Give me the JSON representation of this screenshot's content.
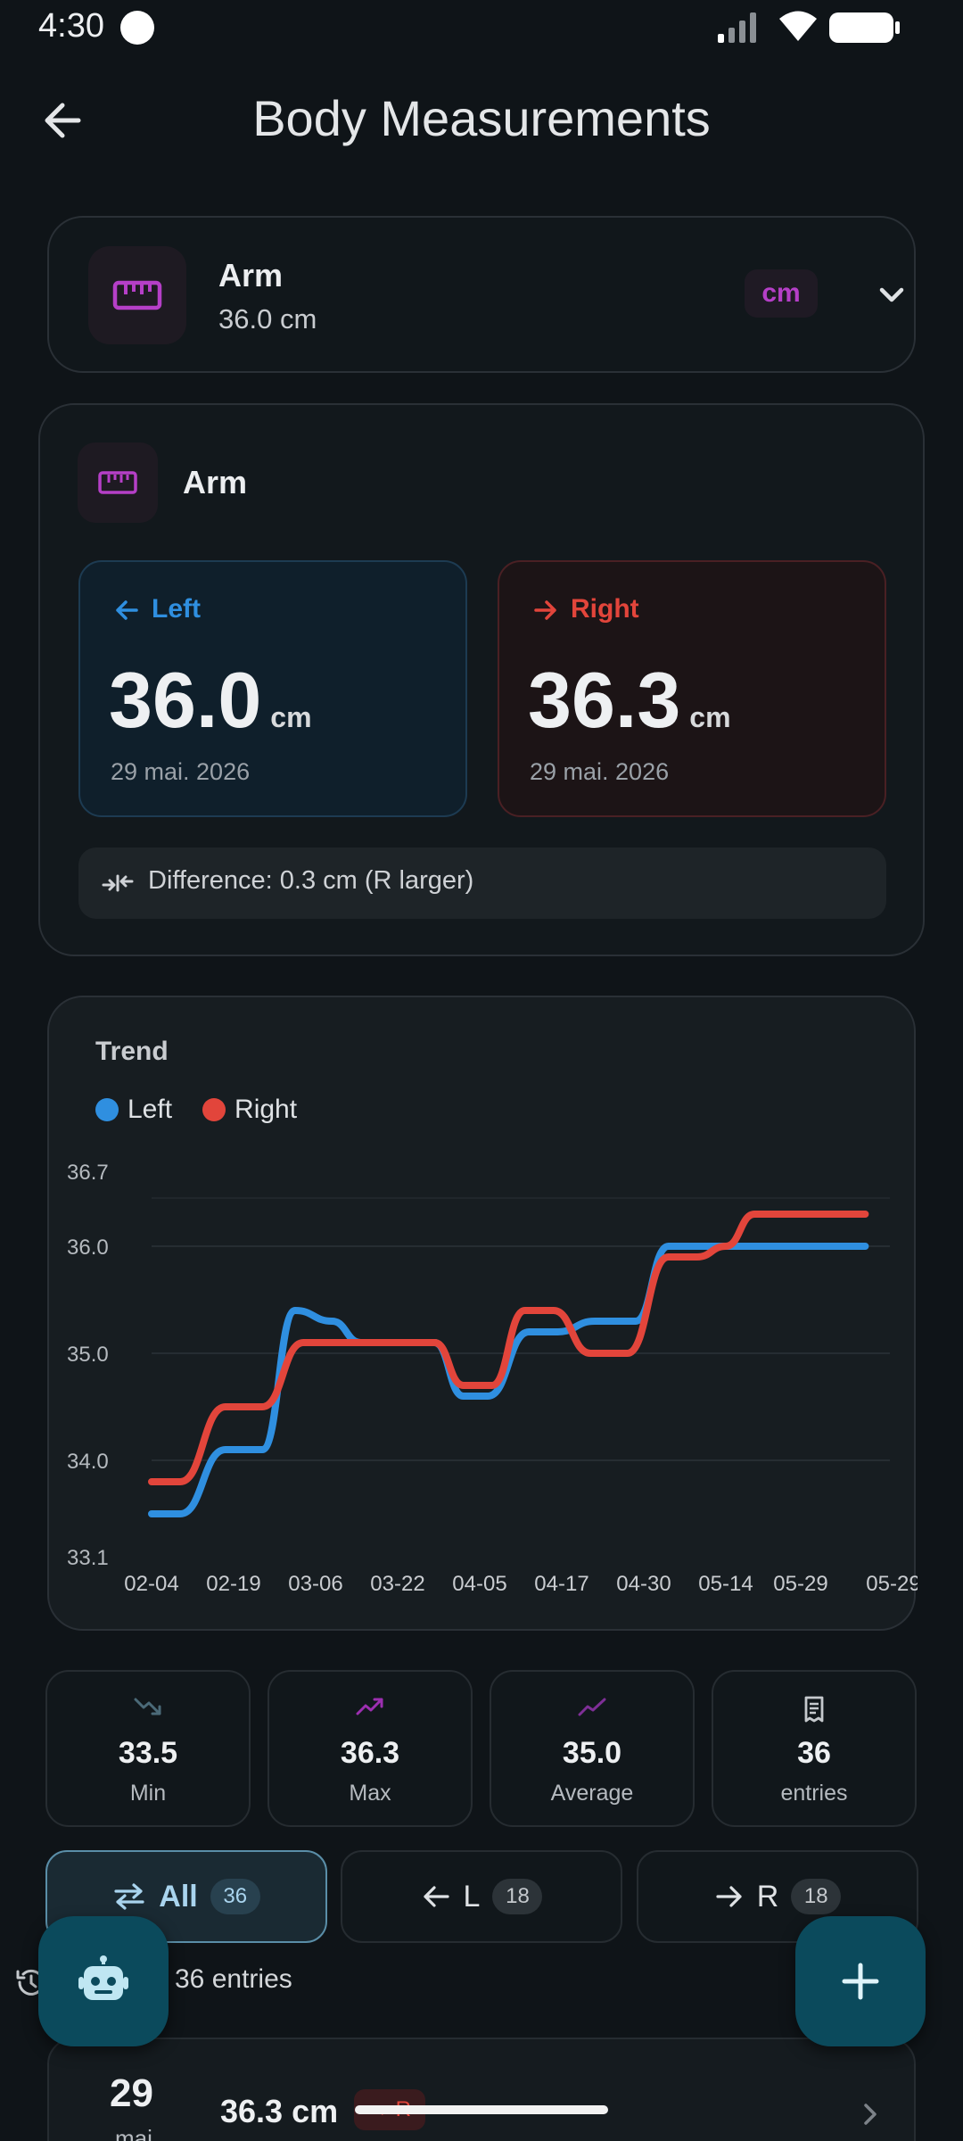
{
  "status": {
    "time": "4:30"
  },
  "header": {
    "title": "Body Measurements",
    "back_icon": "arrow-left-icon"
  },
  "selector": {
    "name": "Arm",
    "value": "36.0 cm",
    "unit": "cm",
    "icon": "ruler-icon"
  },
  "comparison": {
    "name": "Arm",
    "left": {
      "label": "Left",
      "value": "36.0",
      "unit": "cm",
      "date": "29 mai. 2026",
      "color": "#2f8fe0"
    },
    "right": {
      "label": "Right",
      "value": "36.3",
      "unit": "cm",
      "date": "29 mai. 2026",
      "color": "#e2453b"
    },
    "difference": "Difference: 0.3 cm (R larger)"
  },
  "chart_data": {
    "type": "line",
    "title": "Trend",
    "legend_position": "top-left",
    "ylim": [
      33.1,
      36.7
    ],
    "yticks": [
      "36.7",
      "36.0",
      "35.0",
      "34.0",
      "33.1"
    ],
    "xticks": [
      "02-04",
      "02-19",
      "03-06",
      "03-22",
      "04-05",
      "04-17",
      "04-30",
      "05-14",
      "05-29",
      "05-29"
    ],
    "series": [
      {
        "name": "Left",
        "color": "#2f8fe0",
        "x": [
          0,
          0.35,
          0.9,
          1.35,
          1.75,
          2.2,
          2.55,
          3.0,
          3.45,
          3.8,
          4.1,
          4.6,
          4.95,
          5.4,
          5.9,
          6.3,
          6.8,
          7.2,
          7.75,
          8.2,
          8.7
        ],
        "y": [
          33.5,
          33.5,
          34.1,
          34.1,
          35.4,
          35.3,
          35.1,
          35.1,
          35.1,
          34.6,
          34.6,
          35.2,
          35.2,
          35.3,
          35.3,
          36.0,
          36.0,
          36.0,
          36.0,
          36.0,
          36.0
        ]
      },
      {
        "name": "Right",
        "color": "#e2453b",
        "x": [
          0,
          0.35,
          0.9,
          1.35,
          1.85,
          2.3,
          2.7,
          3.05,
          3.45,
          3.8,
          4.15,
          4.55,
          4.9,
          5.35,
          5.8,
          6.3,
          6.65,
          7.0,
          7.35,
          7.8,
          8.2,
          8.7
        ],
        "y": [
          33.8,
          33.8,
          34.5,
          34.5,
          35.1,
          35.1,
          35.1,
          35.1,
          35.1,
          34.7,
          34.7,
          35.4,
          35.4,
          35.0,
          35.0,
          35.9,
          35.9,
          36.0,
          36.3,
          36.3,
          36.3,
          36.3
        ]
      }
    ]
  },
  "stats": [
    {
      "value": "33.5",
      "label": "Min",
      "icon": "trending-down-icon",
      "color": "#4b6a78"
    },
    {
      "value": "36.3",
      "label": "Max",
      "icon": "trending-up-icon",
      "color": "#9c2fb0"
    },
    {
      "value": "35.0",
      "label": "Average",
      "icon": "trend-line-icon",
      "color": "#7e2f96"
    },
    {
      "value": "36",
      "label": "entries",
      "icon": "receipt-icon",
      "color": "#c5c9cd"
    }
  ],
  "tabs": [
    {
      "label": "All",
      "count": "36",
      "icon": "swap-icon"
    },
    {
      "label": "L",
      "count": "18",
      "icon": "arrow-left-icon"
    },
    {
      "label": "R",
      "count": "18",
      "icon": "arrow-right-icon"
    }
  ],
  "entries_header": {
    "text": "36 entries"
  },
  "list": [
    {
      "day": "29",
      "month": "mai",
      "value": "36.3 cm",
      "side": "→ R"
    }
  ]
}
